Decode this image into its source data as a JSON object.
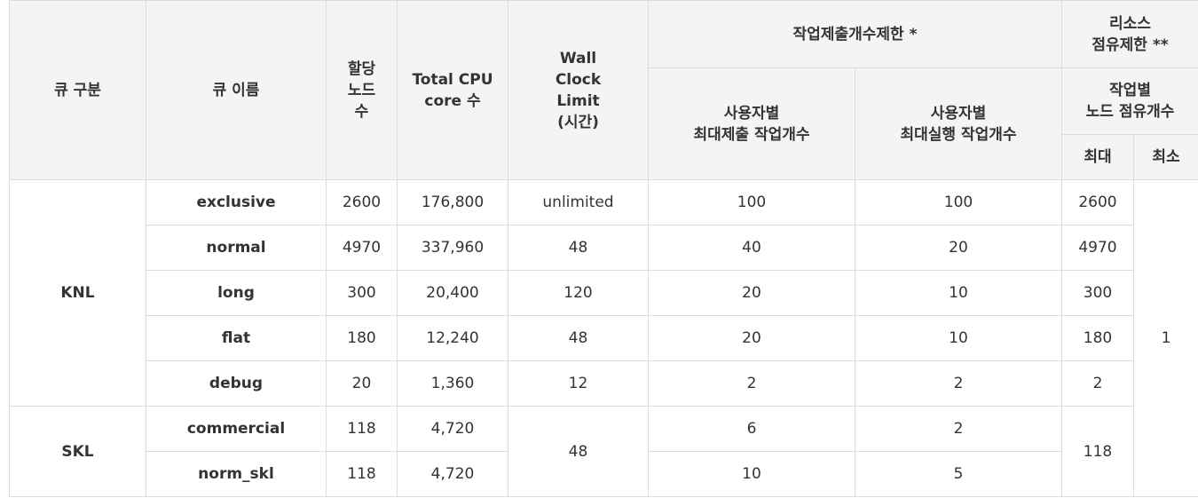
{
  "headers": {
    "group": "큐 구분",
    "name": "큐 이름",
    "nodes": [
      "할당",
      "노드",
      "수"
    ],
    "cores": [
      "Total CPU",
      "core 수"
    ],
    "wall": [
      "Wall",
      "Clock",
      "Limit",
      "(시간)"
    ],
    "submit_limit": "작업제출개수제한 *",
    "resource_limit": [
      "리소스",
      "점유제한 **"
    ],
    "max_submit": [
      "사용자별",
      "최대제출 작업개수"
    ],
    "max_run": [
      "사용자별",
      "최대실행 작업개수"
    ],
    "node_occupy": [
      "작업별",
      "노드 점유개수"
    ],
    "max": "최대",
    "min": "최소"
  },
  "groups": [
    {
      "label": "KNL",
      "rows": [
        {
          "name": "exclusive",
          "nodes": "2600",
          "cores": "176,800",
          "wall": "unlimited",
          "submit": "100",
          "run": "100",
          "max": "2600"
        },
        {
          "name": "normal",
          "nodes": "4970",
          "cores": "337,960",
          "wall": "48",
          "submit": "40",
          "run": "20",
          "max": "4970"
        },
        {
          "name": "long",
          "nodes": "300",
          "cores": "20,400",
          "wall": "120",
          "submit": "20",
          "run": "10",
          "max": "300"
        },
        {
          "name": "flat",
          "nodes": "180",
          "cores": "12,240",
          "wall": "48",
          "submit": "20",
          "run": "10",
          "max": "180"
        },
        {
          "name": "debug",
          "nodes": "20",
          "cores": "1,360",
          "wall": "12",
          "submit": "2",
          "run": "2",
          "max": "2"
        }
      ]
    },
    {
      "label": "SKL",
      "rows": [
        {
          "name": "commercial",
          "nodes": "118",
          "cores": "4,720",
          "wall": "48",
          "submit": "6",
          "run": "2",
          "max": "118"
        },
        {
          "name": "norm_skl",
          "nodes": "118",
          "cores": "4,720",
          "submit": "10",
          "run": "5"
        }
      ]
    }
  ],
  "min_value": "1"
}
